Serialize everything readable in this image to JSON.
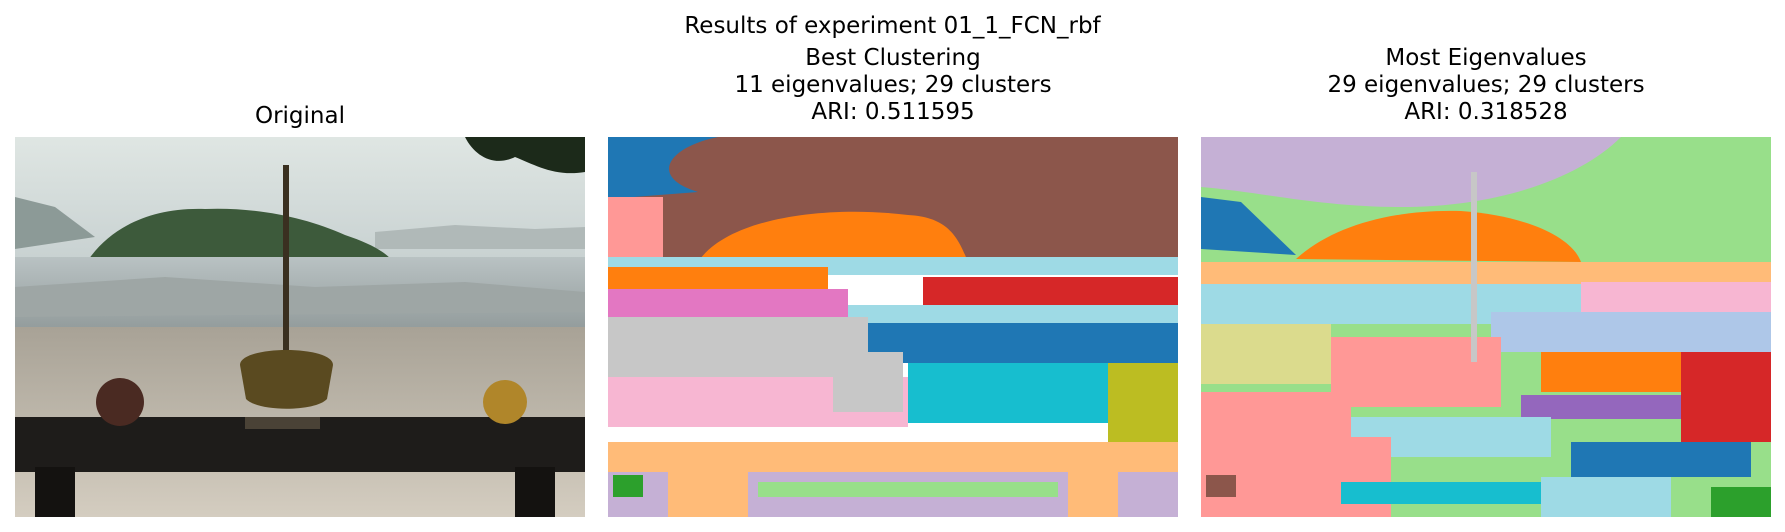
{
  "figure": {
    "suptitle": "Results of experiment 01_1_FCN_rbf",
    "panels": [
      {
        "lines": [
          "Original"
        ]
      },
      {
        "lines": [
          "Best Clustering",
          "11 eigenvalues; 29 clusters",
          "ARI: 0.511595"
        ]
      },
      {
        "lines": [
          "Most Eigenvalues",
          "29 eigenvalues; 29 clusters",
          "ARI: 0.318528"
        ]
      }
    ]
  },
  "colors": {
    "tab_blue": "#1f77b4",
    "tab_brown": "#8c564b",
    "tab_orange": "#ff7f0e",
    "tab_red": "#d62728",
    "tab_pink": "#e377c2",
    "tab_cyan": "#17becf",
    "tab_olive": "#bcbd22",
    "tab_gray": "#7f7f7f",
    "tab_purple": "#9467bd",
    "tab_green": "#2ca02c",
    "light_blue": "#9edae5",
    "light_orange": "#ffbb78",
    "light_green": "#98df8a",
    "light_purple": "#c5b0d5",
    "light_pink": "#f7b6d2",
    "light_gray": "#c7c7c7",
    "light_red": "#ff9896",
    "light_olive": "#dbdb8d"
  }
}
